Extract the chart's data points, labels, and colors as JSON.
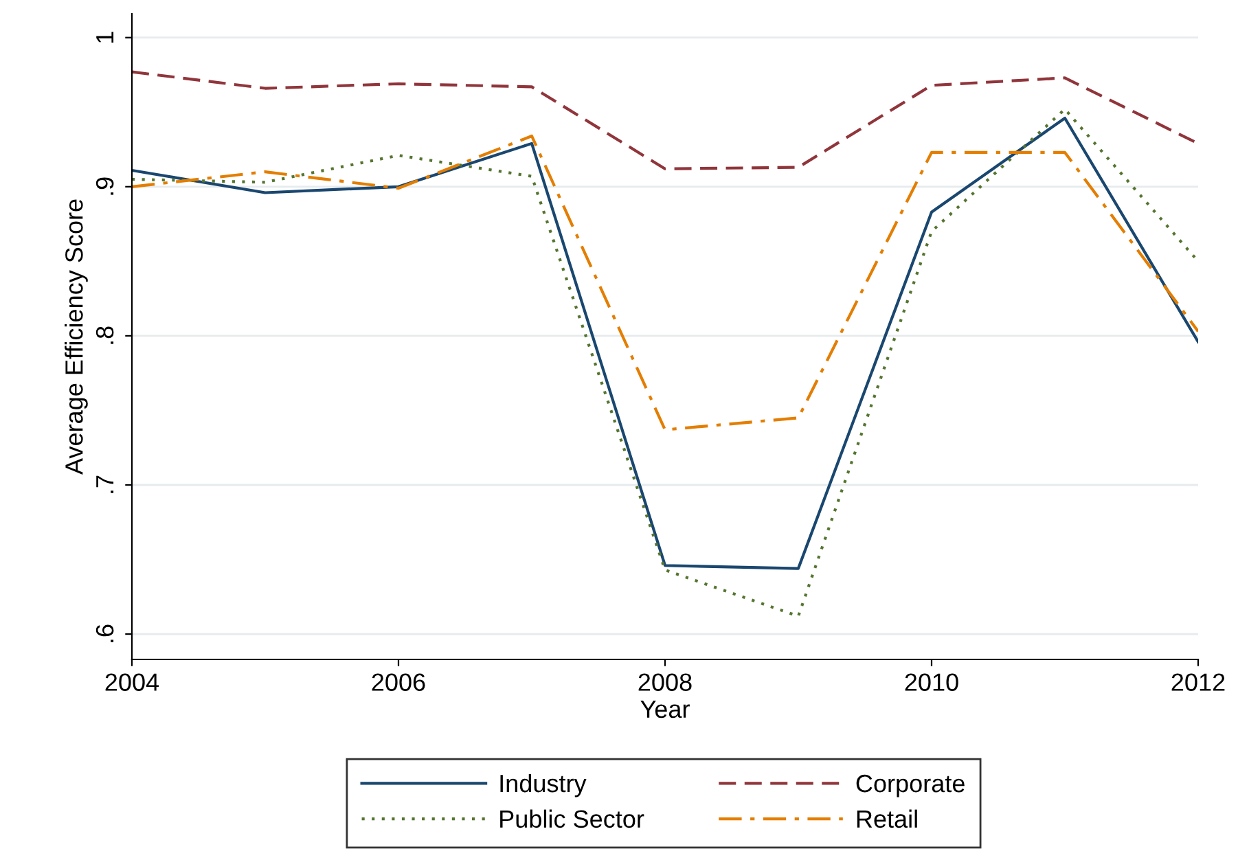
{
  "chart_data": {
    "type": "line",
    "xlabel": "Year",
    "ylabel": "Average Efficiency Score",
    "x": [
      2004,
      2005,
      2006,
      2007,
      2008,
      2009,
      2010,
      2011,
      2012
    ],
    "series": [
      {
        "name": "Industry",
        "color": "#1a476f",
        "line_style": "solid",
        "values": [
          0.911,
          0.896,
          0.9,
          0.929,
          0.646,
          0.644,
          0.883,
          0.946,
          0.796
        ]
      },
      {
        "name": "Corporate",
        "color": "#90353b",
        "line_style": "dashed",
        "values": [
          0.977,
          0.966,
          0.969,
          0.967,
          0.912,
          0.913,
          0.968,
          0.973,
          0.929
        ]
      },
      {
        "name": "Public Sector",
        "color": "#55752f",
        "line_style": "dotted",
        "values": [
          0.905,
          0.903,
          0.921,
          0.907,
          0.643,
          0.612,
          0.87,
          0.952,
          0.85
        ]
      },
      {
        "name": "Retail",
        "color": "#e37e00",
        "line_style": "dashdot",
        "values": [
          0.9,
          0.91,
          0.899,
          0.934,
          0.737,
          0.745,
          0.923,
          0.923,
          0.803
        ]
      }
    ],
    "xlim": [
      2004,
      2012
    ],
    "xticks": [
      2004,
      2006,
      2008,
      2010,
      2012
    ],
    "ylim": [
      0.583,
      1.016
    ],
    "yticks": [
      {
        "value": 0.6,
        "label": ".6"
      },
      {
        "value": 0.7,
        "label": ".7"
      },
      {
        "value": 0.8,
        "label": ".8"
      },
      {
        "value": 0.9,
        "label": ".9"
      },
      {
        "value": 1,
        "label": "1"
      }
    ],
    "grid": "y",
    "legend": "bottom"
  }
}
